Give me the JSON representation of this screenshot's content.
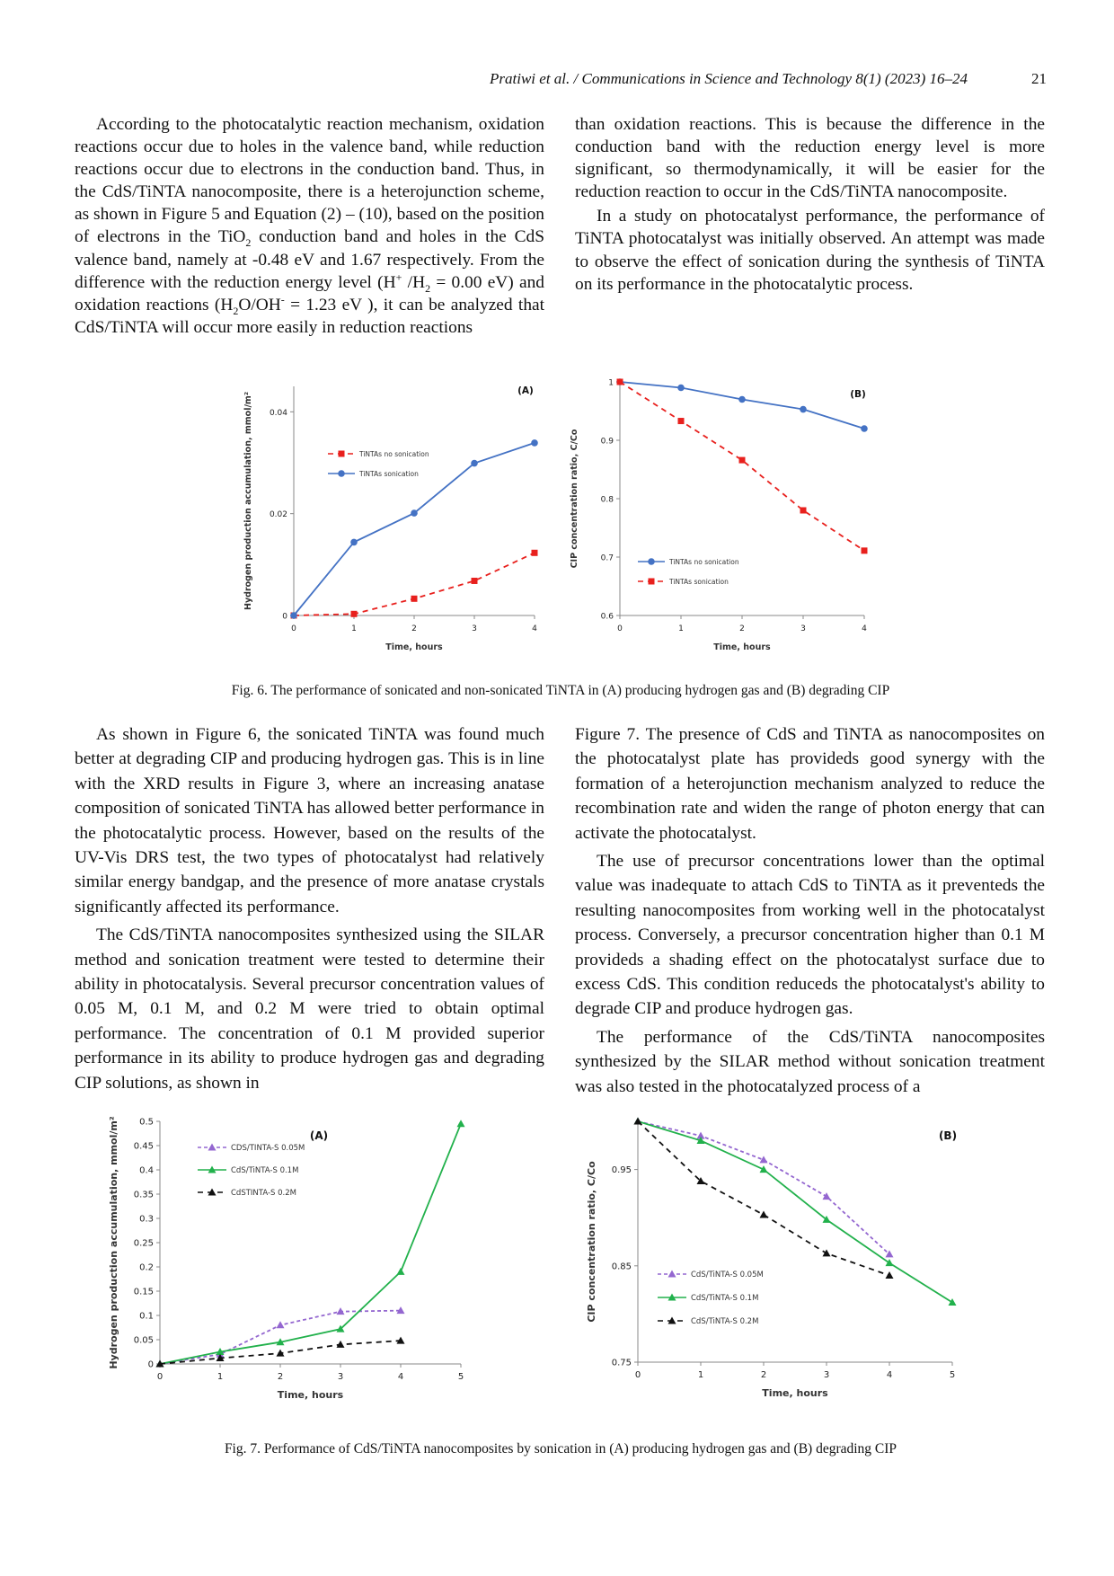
{
  "header": {
    "journal": "Pratiwi et al. / Communications in Science and Technology 8(1) (2023) 16–24",
    "page": "21"
  },
  "text": {
    "col1_p1": "According to the photocatalytic reaction mechanism, oxidation reactions occur due to holes in the valence band, while reduction reactions occur due to electrons in the conduction band. Thus, in the CdS/TiNTA nanocomposite, there is a heterojunction scheme, as shown in Figure 5 and Equation (2) – (10), based on the position of electrons in the",
    "col1_tio2_a": "TiO",
    "col1_tio2_sub": "2",
    "col1_p1_b": " conduction band and holes in the CdS valence band, namely at -0.48 eV and 1.67 respectively. From the difference with the reduction energy level (H",
    "col1_sup_plus": "+",
    "col1_p1_c": " /H",
    "col1_sub_2": "2",
    "col1_p1_d": " = 0.00 eV) and oxidation reactions (H",
    "col1_sub_2b": "2",
    "col1_p1_e": "O/OH",
    "col1_sup_minus": "-",
    "col1_p1_f": " = 1.23 eV ), it can be analyzed that CdS/TiNTA will occur more easily in reduction reactions",
    "col2_p1": "than oxidation reactions. This is because the difference in the conduction band with the reduction energy level is more significant, so thermodynamically, it will be easier for the reduction reaction to occur in the CdS/TiNTA nanocomposite.",
    "col2_p2": "In a study on photocatalyst performance, the performance of TiNTA photocatalyst was initially observed. An attempt was made to observe the effect of sonication during the synthesis of TiNTA on its performance in the photocatalytic process.",
    "col3_p1": "As shown in Figure 6, the sonicated TiNTA was found much better at degrading CIP and producing hydrogen gas. This is in line with the XRD results in Figure 3, where an increasing anatase composition of sonicated TiNTA has allowed better performance in the photocatalytic process. However, based on the results of the UV-Vis DRS test, the two types of photocatalyst had relatively similar energy bandgap, and the presence of more anatase crystals significantly affected its performance.",
    "col3_p2": "The CdS/TiNTA nanocomposites synthesized using the SILAR method and sonication treatment were tested to determine their ability in photocatalysis. Several precursor concentration values of 0.05 M, 0.1 M, and 0.2 M were tried to obtain optimal performance. The concentration of 0.1 M provided superior performance in its ability to produce hydrogen gas and degrading CIP solutions, as shown in",
    "col4_p1": "Figure 7. The presence of CdS and TiNTA as nanocomposites on the photocatalyst plate has provideds good synergy with the formation of a heterojunction mechanism analyzed to reduce the recombination rate and widen the range of photon energy that can activate the photocatalyst.",
    "col4_p2": "The use of precursor concentrations lower than the optimal value was inadequate to attach CdS to TiNTA as it preventeds the resulting nanocomposites from working well in the photocatalyst process. Conversely, a precursor concentration higher than 0.1 M provideds a shading effect on the photocatalyst surface due to excess CdS. This condition reduceds the photocatalyst's ability to degrade CIP and produce hydrogen gas.",
    "col4_p3": "The performance of the CdS/TiNTA nanocomposites synthesized by the SILAR method without sonication treatment was also tested in the photocatalyzed process of a"
  },
  "captions": {
    "fig6": "Fig. 6. The performance of sonicated and non-sonicated TiNTA in (A) producing hydrogen gas and (B) degrading CIP",
    "fig7": "Fig. 7. Performance of CdS/TiNTA nanocomposites by sonication in (A) producing hydrogen gas and (B) degrading CIP"
  },
  "chart_data": [
    {
      "id": "fig6a",
      "type": "line",
      "panel_label": "(A)",
      "xlabel": "Time, hours",
      "ylabel": "Hydrogen production accumulation, mmol/m²",
      "xlim": [
        0,
        4
      ],
      "ylim": [
        0,
        0.045
      ],
      "xticks": [
        "0",
        "1",
        "2",
        "3",
        "4"
      ],
      "yticks": [
        "0",
        "0.02",
        "0.04"
      ],
      "ytick_values": [
        0,
        0.02,
        0.04
      ],
      "legend_position": "middle-left",
      "series": [
        {
          "name": "TiNTAs no sonication",
          "x": [
            0,
            1,
            2,
            3,
            4
          ],
          "y": [
            0,
            0.0003,
            0.0033,
            0.0068,
            0.0123
          ],
          "color": "#e8201d",
          "dash": "6,5",
          "marker": "square"
        },
        {
          "name": "TiNTAs sonication",
          "x": [
            0,
            1,
            2,
            3,
            4
          ],
          "y": [
            0,
            0.0144,
            0.0201,
            0.0299,
            0.0339
          ],
          "color": "#4472c4",
          "dash": "",
          "marker": "circle"
        }
      ]
    },
    {
      "id": "fig6b",
      "type": "line",
      "panel_label": "(B)",
      "xlabel": "Time, hours",
      "ylabel": "CIP concentration ratio, C/Co",
      "xlim": [
        0,
        4
      ],
      "ylim": [
        0.6,
        1.0
      ],
      "xticks": [
        "0",
        "1",
        "2",
        "3",
        "4"
      ],
      "yticks": [
        "0.6",
        "0.7",
        "0.8",
        "0.9",
        "1"
      ],
      "ytick_values": [
        0.6,
        0.7,
        0.8,
        0.9,
        1.0
      ],
      "legend_position": "bottom-left",
      "series": [
        {
          "name": "TiNTAs no sonication",
          "x": [
            0,
            1,
            2,
            3,
            4
          ],
          "y": [
            1.0,
            0.99,
            0.97,
            0.953,
            0.92
          ],
          "color": "#4472c4",
          "dash": "",
          "marker": "circle"
        },
        {
          "name": "TiNTAs sonication",
          "x": [
            0,
            1,
            2,
            3,
            4
          ],
          "y": [
            1.0,
            0.933,
            0.866,
            0.78,
            0.711
          ],
          "color": "#e8201d",
          "dash": "6,5",
          "marker": "square"
        }
      ]
    },
    {
      "id": "fig7a",
      "type": "line",
      "panel_label": "(A)",
      "xlabel": "Time, hours",
      "ylabel": "Hydrogen production accumulation, mmol/m²",
      "xlim": [
        0,
        5
      ],
      "ylim": [
        0,
        0.5
      ],
      "xticks": [
        "0",
        "1",
        "2",
        "3",
        "4",
        "5"
      ],
      "yticks": [
        "0",
        "0.05",
        "0.1",
        "0.15",
        "0.2",
        "0.25",
        "0.3",
        "0.35",
        "0.4",
        "0.45",
        "0.5"
      ],
      "ytick_values": [
        0,
        0.05,
        0.1,
        0.15,
        0.2,
        0.25,
        0.3,
        0.35,
        0.4,
        0.45,
        0.5
      ],
      "legend_position": "top-left",
      "series": [
        {
          "name": "CDS/TINTA-S 0.05M",
          "x": [
            0,
            1,
            2,
            3,
            4
          ],
          "y": [
            0,
            0.02,
            0.08,
            0.108,
            0.11
          ],
          "color": "#9467d0",
          "dash": "4,3",
          "marker": "triangle"
        },
        {
          "name": "CdS/TiNTA-S 0.1M",
          "x": [
            0,
            1,
            2,
            3,
            4,
            5
          ],
          "y": [
            0,
            0.025,
            0.045,
            0.072,
            0.19,
            0.495
          ],
          "color": "#22b14c",
          "dash": "",
          "marker": "triangle"
        },
        {
          "name": "CdSTINTA-S 0.2M",
          "x": [
            0,
            1,
            2,
            3,
            4
          ],
          "y": [
            0,
            0.012,
            0.022,
            0.04,
            0.048
          ],
          "color": "#111111",
          "dash": "6,5",
          "marker": "triangle"
        }
      ]
    },
    {
      "id": "fig7b",
      "type": "line",
      "panel_label": "(B)",
      "xlabel": "Time, hours",
      "ylabel": "CIP concentration ratio, C/Co",
      "xlim": [
        0,
        5
      ],
      "ylim": [
        0.75,
        1.0
      ],
      "xticks": [
        "0",
        "1",
        "2",
        "3",
        "4",
        "5"
      ],
      "yticks": [
        "0.75",
        "0.85",
        "0.95"
      ],
      "ytick_values": [
        0.75,
        0.85,
        0.95
      ],
      "legend_position": "bottom-left",
      "series": [
        {
          "name": "CdS/TiNTA-S 0.05M",
          "x": [
            0,
            1,
            2,
            3,
            4
          ],
          "y": [
            1.0,
            0.985,
            0.96,
            0.922,
            0.862
          ],
          "color": "#9467d0",
          "dash": "4,3",
          "marker": "triangle"
        },
        {
          "name": "CdS/TiNTA-S 0.1M",
          "x": [
            0,
            1,
            2,
            3,
            4,
            5
          ],
          "y": [
            1.0,
            0.98,
            0.95,
            0.898,
            0.853,
            0.812
          ],
          "color": "#22b14c",
          "dash": "",
          "marker": "triangle"
        },
        {
          "name": "CdS/TiNTA-S 0.2M",
          "x": [
            0,
            1,
            2,
            3,
            4
          ],
          "y": [
            1.0,
            0.938,
            0.903,
            0.863,
            0.84
          ],
          "color": "#111111",
          "dash": "6,5",
          "marker": "triangle"
        }
      ]
    }
  ]
}
